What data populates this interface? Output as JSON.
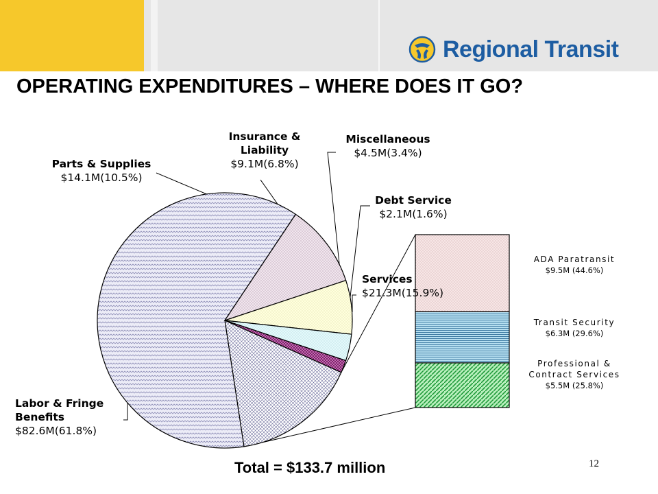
{
  "header": {
    "brand_name": "Regional Transit",
    "colors": {
      "yellow": "#f6c82b",
      "band": "#e6e6e6",
      "brand_blue": "#1d5da2"
    },
    "logo_icon": "regional-transit-logo-icon"
  },
  "title": "OPERATING EXPENDITURES – WHERE DOES IT GO?",
  "total_label": "Total = $133.7 million",
  "page_number": "12",
  "chart_data": [
    {
      "type": "pie",
      "title": "",
      "slices": [
        {
          "name_lines": [
            "Services"
          ],
          "value_label": "$21.3M",
          "pct_label": "(15.9%)",
          "value": 21.3,
          "percent": 15.9,
          "fill": "#ffffff",
          "pattern": "crosshatch"
        },
        {
          "name_lines": [
            "Labor & Fringe",
            "Benefits"
          ],
          "value_label": "$82.6M",
          "pct_label": "(61.8%)",
          "value": 82.6,
          "percent": 61.8,
          "fill": "#ececf7",
          "pattern": "zigzag"
        },
        {
          "name_lines": [
            "Parts & Supplies"
          ],
          "value_label": "$14.1M",
          "pct_label": "(10.5%)",
          "value": 14.1,
          "percent": 10.5,
          "fill": "#f1e6ee",
          "pattern": "dots"
        },
        {
          "name_lines": [
            "Insurance &",
            "Liability"
          ],
          "value_label": "$9.1M",
          "pct_label": "(6.8%)",
          "value": 9.1,
          "percent": 6.8,
          "fill": "#ffffdd",
          "pattern": "dots"
        },
        {
          "name_lines": [
            "Miscellaneous"
          ],
          "value_label": "$4.5M",
          "pct_label": "(3.4%)",
          "value": 4.5,
          "percent": 3.4,
          "fill": "#e4f9fb",
          "pattern": "dots"
        },
        {
          "name_lines": [
            "Debt Service"
          ],
          "value_label": "$2.1M",
          "pct_label": "(1.6%)",
          "value": 2.1,
          "percent": 1.6,
          "fill": "#7d246b",
          "pattern": "checker"
        }
      ]
    },
    {
      "type": "bar",
      "stacked": true,
      "title": "",
      "segments": [
        {
          "name_lines": [
            "ADA Paratransit"
          ],
          "value_label": "$9.5M (44.6%)",
          "value": 9.5,
          "percent": 44.6,
          "fill": "#f7e6e6",
          "pattern": "dots"
        },
        {
          "name_lines": [
            "Transit Security"
          ],
          "value_label": "$6.3M (29.6%)",
          "value": 6.3,
          "percent": 29.6,
          "fill": "#b6dff0",
          "pattern": "hlines"
        },
        {
          "name_lines": [
            "Professional &",
            "Contract Services"
          ],
          "value_label": "$5.5M (25.8%)",
          "value": 5.5,
          "percent": 25.8,
          "fill": "#b9f0bd",
          "pattern": "diagonal"
        }
      ]
    }
  ]
}
